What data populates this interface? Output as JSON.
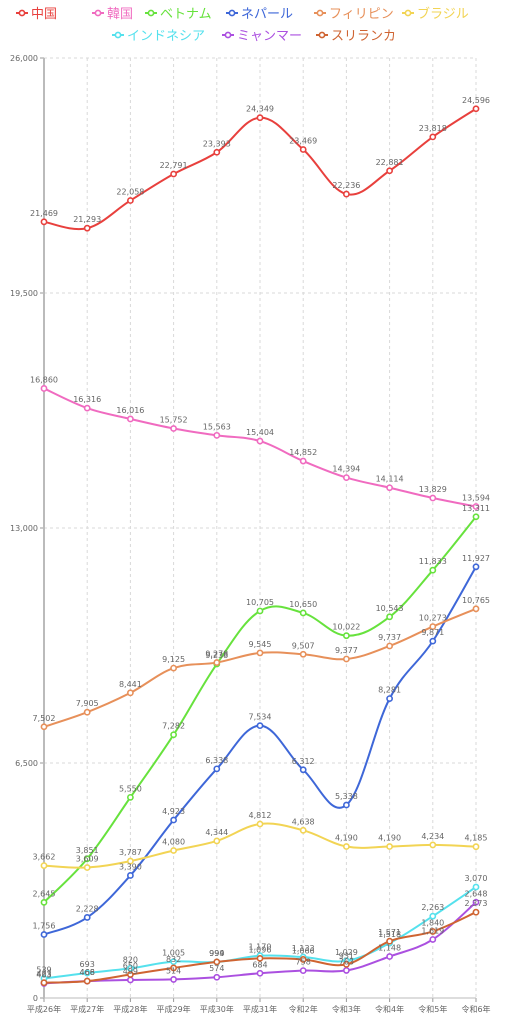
{
  "chart_data": {
    "type": "line",
    "categories": [
      "平成26年",
      "平成27年",
      "平成28年",
      "平成29年",
      "平成30年",
      "平成31年",
      "令和2年",
      "令和3年",
      "令和4年",
      "令和5年",
      "令和6年"
    ],
    "ylim": [
      0,
      26000
    ],
    "yticks": [
      0,
      6500,
      13000,
      19500,
      26000
    ],
    "ytick_labels": [
      "0",
      "6,500",
      "13,000",
      "19,500",
      "26,000"
    ],
    "grid": true,
    "legend_position": "top",
    "series": [
      {
        "name": "中国",
        "color": "#e8403d",
        "values": [
          21469,
          21293,
          22058,
          22791,
          23393,
          24349,
          23469,
          22236,
          22881,
          23818,
          24596
        ],
        "labels": [
          "21,469",
          "21,293",
          "22,058",
          "22,791",
          "23,393",
          "24,349",
          "23,469",
          "22,236",
          "22,881",
          "23,818",
          "24,596"
        ]
      },
      {
        "name": "韓国",
        "color": "#f06bc0",
        "values": [
          16860,
          16316,
          16016,
          15752,
          15563,
          15404,
          14852,
          14394,
          14114,
          13829,
          13594
        ],
        "labels": [
          "16,860",
          "16,316",
          "16,016",
          "15,752",
          "15,563",
          "15,404",
          "14,852",
          "14,394",
          "14,114",
          "13,829",
          "13,594"
        ]
      },
      {
        "name": "ベトナム",
        "color": "#67e23d",
        "values": [
          2645,
          3851,
          5550,
          7282,
          9238,
          10705,
          10650,
          10022,
          10543,
          11833,
          13311
        ],
        "labels": [
          "2,645",
          "3,851",
          "5,550",
          "7,282",
          "9,238",
          "10,705",
          "10,650",
          "10,022",
          "10,543",
          "11,833",
          "13,311"
        ]
      },
      {
        "name": "ネパール",
        "color": "#3e67d8",
        "values": [
          1756,
          2228,
          3390,
          4923,
          6338,
          7534,
          6312,
          5338,
          8281,
          9871,
          11927
        ],
        "labels": [
          "1,756",
          "2,228",
          "3,390",
          "4,923",
          "6,338",
          "7,534",
          "6,312",
          "5,338",
          "8,281",
          "9,871",
          "11,927"
        ]
      },
      {
        "name": "フィリピン",
        "color": "#e7905a",
        "values": [
          7502,
          7905,
          8441,
          9125,
          9278,
          9545,
          9507,
          9377,
          9737,
          10273,
          10765
        ],
        "labels": [
          "7,502",
          "7,905",
          "8,441",
          "9,125",
          "9,278",
          "9,545",
          "9,507",
          "9,377",
          "9,737",
          "10,273",
          "10,765"
        ]
      },
      {
        "name": "ブラジル",
        "color": "#f2d454",
        "values": [
          3662,
          3609,
          3787,
          4080,
          4344,
          4812,
          4638,
          4190,
          4190,
          4234,
          4185
        ],
        "labels": [
          "3,662",
          "3,609",
          "3,787",
          "4,080",
          "4,344",
          "4,812",
          "4,638",
          "4,190",
          "4,190",
          "4,234",
          "4,185"
        ]
      },
      {
        "name": "インドネシア",
        "color": "#55e1ed",
        "values": [
          539,
          693,
          820,
          1005,
          994,
          1170,
          1133,
          1029,
          1518,
          2263,
          3070
        ],
        "labels": [
          "539",
          "693",
          "820",
          "1,005",
          "994",
          "1,170",
          "1,133",
          "1,029",
          "1,518",
          "2,263",
          "3,070"
        ]
      },
      {
        "name": "ミャンマー",
        "color": "#ab50e0",
        "values": [
          403,
          466,
          499,
          514,
          574,
          684,
          758,
          763,
          1148,
          1619,
          2648
        ],
        "labels": [
          "403",
          "466",
          "499",
          "514",
          "574",
          "684",
          "758",
          "763",
          "1,148",
          "1,619",
          "2,648"
        ]
      },
      {
        "name": "スリランカ",
        "color": "#cf6432",
        "values": [
          423,
          468,
          650,
          832,
          999,
          1096,
          1066,
          931,
          1571,
          1840,
          2373
        ],
        "labels": [
          "423",
          "468",
          "650",
          "832",
          "999",
          "1,096",
          "1,066",
          "931",
          "1,571",
          "1,840",
          "2,373"
        ]
      }
    ]
  }
}
